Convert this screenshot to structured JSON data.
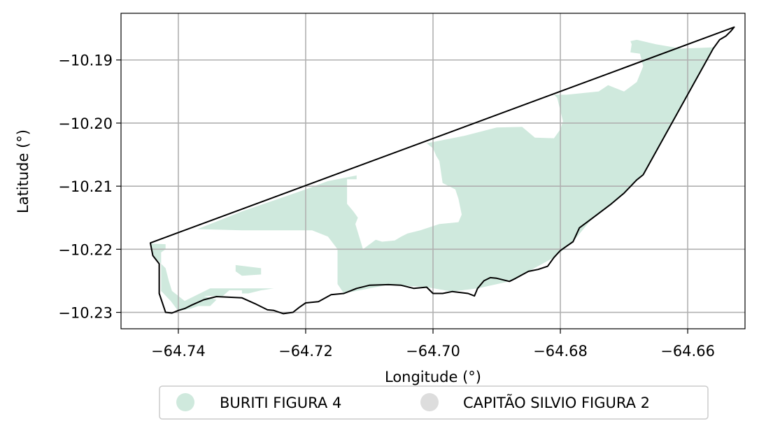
{
  "map": {
    "x_axis": {
      "label": "Longitude (°)",
      "range": [
        -64.749,
        -64.651
      ],
      "ticks": [
        {
          "value": -64.74,
          "label": "−64.74"
        },
        {
          "value": -64.72,
          "label": "−64.72"
        },
        {
          "value": -64.7,
          "label": "−64.70"
        },
        {
          "value": -64.68,
          "label": "−64.68"
        },
        {
          "value": -64.66,
          "label": "−64.66"
        }
      ]
    },
    "y_axis": {
      "label": "Latitude (°)",
      "range": [
        -10.2326,
        -10.1826
      ],
      "ticks": [
        {
          "value": -10.19,
          "label": "−10.19"
        },
        {
          "value": -10.2,
          "label": "−10.20"
        },
        {
          "value": -10.21,
          "label": "−10.21"
        },
        {
          "value": -10.22,
          "label": "−10.22"
        },
        {
          "value": -10.23,
          "label": "−10.23"
        }
      ]
    },
    "grid": true,
    "boundary": {
      "stroke": "#000000",
      "points": [
        [
          -64.7444,
          -10.219
        ],
        [
          -64.6527,
          -10.1848
        ],
        [
          -64.6532,
          -10.1854
        ],
        [
          -64.654,
          -10.1862
        ],
        [
          -64.655,
          -10.1868
        ],
        [
          -64.656,
          -10.1882
        ],
        [
          -64.667,
          -10.2082
        ],
        [
          -64.668,
          -10.209
        ],
        [
          -64.67,
          -10.2111
        ],
        [
          -64.672,
          -10.2128
        ],
        [
          -64.675,
          -10.2151
        ],
        [
          -64.677,
          -10.2166
        ],
        [
          -64.678,
          -10.2188
        ],
        [
          -64.68,
          -10.2202
        ],
        [
          -64.681,
          -10.2213
        ],
        [
          -64.682,
          -10.2227
        ],
        [
          -64.6835,
          -10.2232
        ],
        [
          -64.685,
          -10.2235
        ],
        [
          -64.687,
          -10.2246
        ],
        [
          -64.688,
          -10.2251
        ],
        [
          -64.69,
          -10.2246
        ],
        [
          -64.691,
          -10.2245
        ],
        [
          -64.692,
          -10.225
        ],
        [
          -64.693,
          -10.2262
        ],
        [
          -64.6935,
          -10.2274
        ],
        [
          -64.6945,
          -10.227
        ],
        [
          -64.697,
          -10.2267
        ],
        [
          -64.6985,
          -10.227
        ],
        [
          -64.7,
          -10.227
        ],
        [
          -64.701,
          -10.226
        ],
        [
          -64.703,
          -10.2262
        ],
        [
          -64.705,
          -10.2257
        ],
        [
          -64.707,
          -10.2256
        ],
        [
          -64.71,
          -10.2257
        ],
        [
          -64.712,
          -10.2262
        ],
        [
          -64.714,
          -10.227
        ],
        [
          -64.716,
          -10.2272
        ],
        [
          -64.718,
          -10.2283
        ],
        [
          -64.72,
          -10.2285
        ],
        [
          -64.721,
          -10.2292
        ],
        [
          -64.722,
          -10.23
        ],
        [
          -64.7235,
          -10.2302
        ],
        [
          -64.725,
          -10.2297
        ],
        [
          -64.726,
          -10.2296
        ],
        [
          -64.728,
          -10.2286
        ],
        [
          -64.73,
          -10.2277
        ],
        [
          -64.732,
          -10.2276
        ],
        [
          -64.734,
          -10.2275
        ],
        [
          -64.736,
          -10.228
        ],
        [
          -64.738,
          -10.2289
        ],
        [
          -64.739,
          -10.2294
        ],
        [
          -64.74,
          -10.2297
        ],
        [
          -64.741,
          -10.2301
        ],
        [
          -64.742,
          -10.23
        ],
        [
          -64.743,
          -10.227
        ],
        [
          -64.743,
          -10.2223
        ],
        [
          -64.744,
          -10.221
        ],
        [
          -64.7444,
          -10.219
        ]
      ]
    },
    "regions": [
      {
        "name": "BURITI FIGURA 4",
        "color": "#cfe9dd",
        "polygons": [
          [
            [
              -64.7443,
              -10.2191
            ],
            [
              -64.742,
              -10.2192
            ],
            [
              -64.742,
              -10.22
            ],
            [
              -64.7427,
              -10.2205
            ],
            [
              -64.7427,
              -10.223
            ],
            [
              -64.7427,
              -10.2266
            ],
            [
              -64.7412,
              -10.2282
            ],
            [
              -64.74,
              -10.2298
            ],
            [
              -64.738,
              -10.2294
            ],
            [
              -64.736,
              -10.2287
            ],
            [
              -64.735,
              -10.228
            ],
            [
              -64.7375,
              -10.2283
            ],
            [
              -64.7375,
              -10.229
            ],
            [
              -64.735,
              -10.229
            ],
            [
              -64.734,
              -10.228
            ],
            [
              -64.736,
              -10.2274
            ],
            [
              -64.733,
              -10.2274
            ],
            [
              -64.732,
              -10.2265
            ],
            [
              -64.73,
              -10.2265
            ],
            [
              -64.73,
              -10.227
            ],
            [
              -64.729,
              -10.227
            ],
            [
              -64.727,
              -10.2265
            ],
            [
              -64.725,
              -10.2262
            ],
            [
              -64.735,
              -10.2262
            ],
            [
              -64.739,
              -10.2282
            ],
            [
              -64.741,
              -10.2266
            ],
            [
              -64.7415,
              -10.225
            ],
            [
              -64.742,
              -10.223
            ],
            [
              -64.743,
              -10.222
            ],
            [
              -64.744,
              -10.221
            ],
            [
              -64.7443,
              -10.2191
            ]
          ],
          [
            [
              -64.737,
              -10.2168
            ],
            [
              -64.73,
              -10.214
            ],
            [
              -64.72,
              -10.2105
            ],
            [
              -64.7165,
              -10.2092
            ],
            [
              -64.712,
              -10.2083
            ],
            [
              -64.712,
              -10.2089
            ],
            [
              -64.7135,
              -10.2089
            ],
            [
              -64.7135,
              -10.2128
            ],
            [
              -64.7125,
              -10.214
            ],
            [
              -64.7118,
              -10.215
            ],
            [
              -64.7122,
              -10.216
            ],
            [
              -64.711,
              -10.22
            ],
            [
              -64.709,
              -10.2185
            ],
            [
              -64.708,
              -10.2188
            ],
            [
              -64.706,
              -10.2186
            ],
            [
              -64.705,
              -10.218
            ],
            [
              -64.704,
              -10.2175
            ],
            [
              -64.702,
              -10.217
            ],
            [
              -64.699,
              -10.216
            ],
            [
              -64.696,
              -10.2157
            ],
            [
              -64.6955,
              -10.2145
            ],
            [
              -64.696,
              -10.212
            ],
            [
              -64.6965,
              -10.2105
            ],
            [
              -64.6985,
              -10.2095
            ],
            [
              -64.699,
              -10.206
            ],
            [
              -64.6995,
              -10.2052
            ],
            [
              -64.7,
              -10.204
            ],
            [
              -64.701,
              -10.2032
            ],
            [
              -64.699,
              -10.2028
            ],
            [
              -64.695,
              -10.202
            ],
            [
              -64.69,
              -10.2007
            ],
            [
              -64.686,
              -10.2006
            ],
            [
              -64.684,
              -10.2023
            ],
            [
              -64.681,
              -10.2024
            ],
            [
              -64.68,
              -10.201
            ],
            [
              -64.6796,
              -10.1997
            ],
            [
              -64.68,
              -10.198
            ],
            [
              -64.6805,
              -10.196
            ],
            [
              -64.681,
              -10.1955
            ],
            [
              -64.679,
              -10.1955
            ],
            [
              -64.674,
              -10.195
            ],
            [
              -64.6725,
              -10.194
            ],
            [
              -64.67,
              -10.195
            ],
            [
              -64.668,
              -10.1935
            ],
            [
              -64.667,
              -10.191
            ],
            [
              -64.6675,
              -10.189
            ],
            [
              -64.669,
              -10.1888
            ],
            [
              -64.6688,
              -10.1875
            ],
            [
              -64.669,
              -10.187
            ],
            [
              -64.668,
              -10.1868
            ],
            [
              -64.665,
              -10.1875
            ],
            [
              -64.661,
              -10.1882
            ],
            [
              -64.656,
              -10.188
            ],
            [
              -64.655,
              -10.1868
            ],
            [
              -64.656,
              -10.1882
            ],
            [
              -64.667,
              -10.2082
            ],
            [
              -64.67,
              -10.2111
            ],
            [
              -64.675,
              -10.2151
            ],
            [
              -64.678,
              -10.2188
            ],
            [
              -64.681,
              -10.2213
            ],
            [
              -64.685,
              -10.2235
            ],
            [
              -64.688,
              -10.2251
            ],
            [
              -64.693,
              -10.2262
            ],
            [
              -64.697,
              -10.2267
            ],
            [
              -64.701,
              -10.226
            ],
            [
              -64.707,
              -10.2256
            ],
            [
              -64.714,
              -10.227
            ],
            [
              -64.715,
              -10.2255
            ],
            [
              -64.715,
              -10.22
            ],
            [
              -64.7165,
              -10.218
            ],
            [
              -64.719,
              -10.217
            ],
            [
              -64.73,
              -10.217
            ],
            [
              -64.737,
              -10.2168
            ]
          ],
          [
            [
              -64.731,
              -10.2225
            ],
            [
              -64.727,
              -10.223
            ],
            [
              -64.727,
              -10.224
            ],
            [
              -64.73,
              -10.2242
            ],
            [
              -64.731,
              -10.2235
            ],
            [
              -64.731,
              -10.2225
            ]
          ]
        ]
      },
      {
        "name": "CAPITÃO SILVIO FIGURA 2",
        "color": "#dddddd",
        "polygons": []
      }
    ],
    "legend": {
      "placement": "bottom-center",
      "items": [
        {
          "label": "BURITI FIGURA 4",
          "color": "#cfe9dd"
        },
        {
          "label": "CAPITÃO SILVIO FIGURA 2",
          "color": "#dddddd"
        }
      ]
    }
  }
}
